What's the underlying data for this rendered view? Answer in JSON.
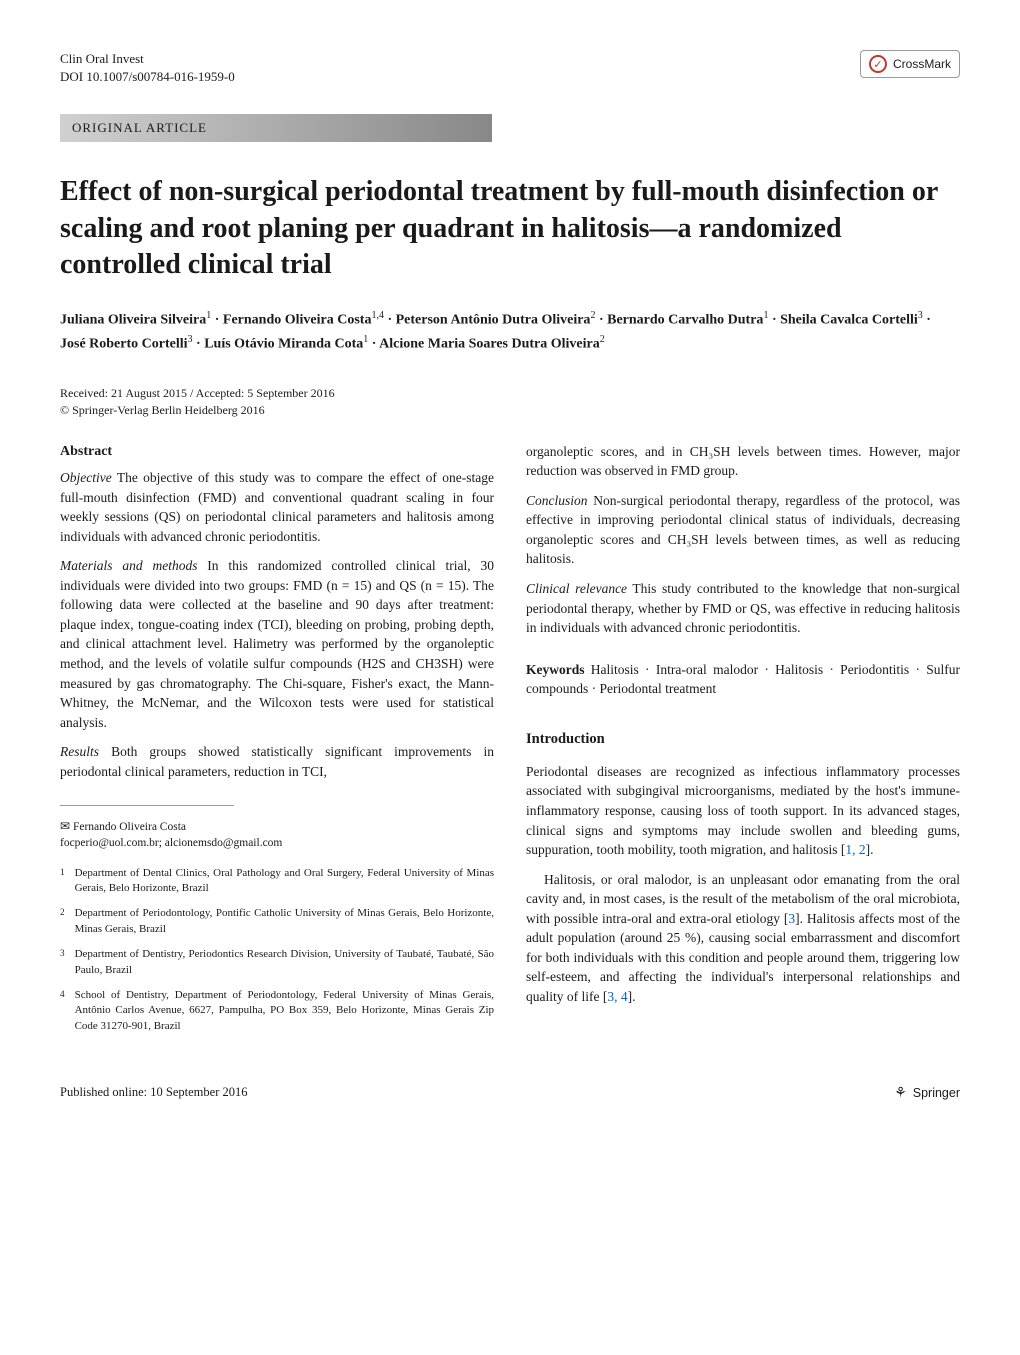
{
  "journal": {
    "name": "Clin Oral Invest",
    "doi": "DOI 10.1007/s00784-016-1959-0"
  },
  "crossmark_label": "CrossMark",
  "article_type": "ORIGINAL ARTICLE",
  "title": "Effect of non-surgical periodontal treatment by full-mouth disinfection or scaling and root planing per quadrant in halitosis—a randomized controlled clinical trial",
  "authors_html": "Juliana Oliveira Silveira<sup>1</sup> · Fernando Oliveira Costa<sup>1,4</sup> · Peterson Antônio Dutra Oliveira<sup>2</sup> · Bernardo Carvalho Dutra<sup>1</sup> · Sheila Cavalca Cortelli<sup>3</sup> · José Roberto Cortelli<sup>3</sup> · Luís Otávio Miranda Cota<sup>1</sup> · Alcione Maria Soares Dutra Oliveira<sup>2</sup>",
  "dates": "Received: 21 August 2015 / Accepted: 5 September 2016",
  "copyright": "© Springer-Verlag Berlin Heidelberg 2016",
  "abstract": {
    "heading": "Abstract",
    "objective_label": "Objective",
    "objective": " The objective of this study was to compare the effect of one-stage full-mouth disinfection (FMD) and conventional quadrant scaling in four weekly sessions (QS) on periodontal clinical parameters and halitosis among individuals with advanced chronic periodontitis.",
    "materials_label": "Materials and methods",
    "materials": " In this randomized controlled clinical trial, 30 individuals were divided into two groups: FMD (n = 15) and QS (n = 15). The following data were collected at the baseline and 90 days after treatment: plaque index, tongue-coating index (TCI), bleeding on probing, probing depth, and clinical attachment level. Halimetry was performed by the organoleptic method, and the levels of volatile sulfur compounds (H2S and CH3SH) were measured by gas chromatography. The Chi-square, Fisher's exact, the Mann-Whitney, the McNemar, and the Wilcoxon tests were used for statistical analysis.",
    "results_label": "Results",
    "results": " Both groups showed statistically significant improvements in periodontal clinical parameters, reduction in TCI,",
    "results_cont": "organoleptic scores, and in CH₃SH levels between times. However, major reduction was observed in FMD group.",
    "conclusion_label": "Conclusion",
    "conclusion": " Non-surgical periodontal therapy, regardless of the protocol, was effective in improving periodontal clinical status of individuals, decreasing organoleptic scores and CH₃SH levels between times, as well as reducing halitosis.",
    "relevance_label": "Clinical relevance",
    "relevance": " This study contributed to the knowledge that non-surgical periodontal therapy, whether by FMD or QS, was effective in reducing halitosis in individuals with advanced chronic periodontitis."
  },
  "keywords": {
    "label": "Keywords",
    "text": " Halitosis · Intra-oral malodor · Halitosis · Periodontitis · Sulfur compounds · Periodontal treatment"
  },
  "introduction": {
    "heading": "Introduction",
    "p1": "Periodontal diseases are recognized as infectious inflammatory processes associated with subgingival microorganisms, mediated by the host's immune-inflammatory response, causing loss of tooth support. In its advanced stages, clinical signs and symptoms may include swollen and bleeding gums, suppuration, tooth mobility, tooth migration, and halitosis [",
    "p1_refs": "1, 2",
    "p1_end": "].",
    "p2": "Halitosis, or oral malodor, is an unpleasant odor emanating from the oral cavity and, in most cases, is the result of the metabolism of the oral microbiota, with possible intra-oral and extra-oral etiology [",
    "p2_ref1": "3",
    "p2_mid": "]. Halitosis affects most of the adult population (around 25 %), causing social embarrassment and discomfort for both individuals with this condition and people around them, triggering low self-esteem, and affecting the individual's interpersonal relationships and quality of life [",
    "p2_ref2": "3, 4",
    "p2_end": "]."
  },
  "correspondence": {
    "name": "Fernando Oliveira Costa",
    "emails": "focperio@uol.com.br; alcionemsdo@gmail.com"
  },
  "affiliations": [
    {
      "n": "1",
      "text": "Department of Dental Clinics, Oral Pathology and Oral Surgery, Federal University of Minas Gerais, Belo Horizonte, Brazil"
    },
    {
      "n": "2",
      "text": "Department of Periodontology, Pontific Catholic University of Minas Gerais, Belo Horizonte, Minas Gerais, Brazil"
    },
    {
      "n": "3",
      "text": "Department of Dentistry, Periodontics Research Division, University of Taubaté, Taubaté, São Paulo, Brazil"
    },
    {
      "n": "4",
      "text": "School of Dentistry, Department of Periodontology, Federal University of Minas Gerais, Antônio Carlos Avenue, 6627, Pampulha, PO Box 359, Belo Horizonte, Minas Gerais Zip Code 31270-901, Brazil"
    }
  ],
  "footer": {
    "published": "Published online: 10 September 2016",
    "publisher": "Springer"
  },
  "colors": {
    "text": "#1a1a1a",
    "link": "#0066cc",
    "bar_start": "#d0d0d0",
    "bar_end": "#888888",
    "crossmark_red": "#c0392b"
  }
}
